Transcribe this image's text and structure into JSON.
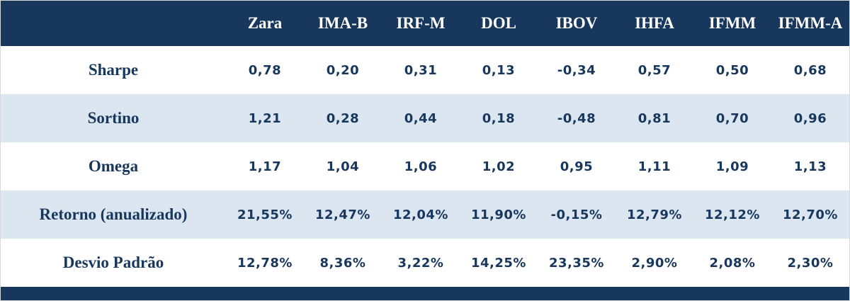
{
  "colors": {
    "header_bg": "#17375d",
    "header_fg": "#ffffff",
    "shaded_row": "#dce6f1",
    "text_navy": "#17375d"
  },
  "chart_data": {
    "type": "table",
    "title": "",
    "corner_label": "",
    "columns": [
      "Zara",
      "IMA-B",
      "IRF-M",
      "DOL",
      "IBOV",
      "IHFA",
      "IFMM",
      "IFMM-A"
    ],
    "rows": [
      {
        "label": "Sharpe",
        "values": [
          "0,78",
          "0,20",
          "0,31",
          "0,13",
          "-0,34",
          "0,57",
          "0,50",
          "0,68"
        ]
      },
      {
        "label": "Sortino",
        "values": [
          "1,21",
          "0,28",
          "0,44",
          "0,18",
          "-0,48",
          "0,81",
          "0,70",
          "0,96"
        ]
      },
      {
        "label": "Omega",
        "values": [
          "1,17",
          "1,04",
          "1,06",
          "1,02",
          "0,95",
          "1,11",
          "1,09",
          "1,13"
        ]
      },
      {
        "label": "Retorno (anualizado)",
        "values": [
          "21,55%",
          "12,47%",
          "12,04%",
          "11,90%",
          "-0,15%",
          "12,79%",
          "12,12%",
          "12,70%"
        ]
      },
      {
        "label": "Desvio Padrão",
        "values": [
          "12,78%",
          "8,36%",
          "3,22%",
          "14,25%",
          "23,35%",
          "2,90%",
          "2,08%",
          "2,30%"
        ]
      }
    ]
  }
}
